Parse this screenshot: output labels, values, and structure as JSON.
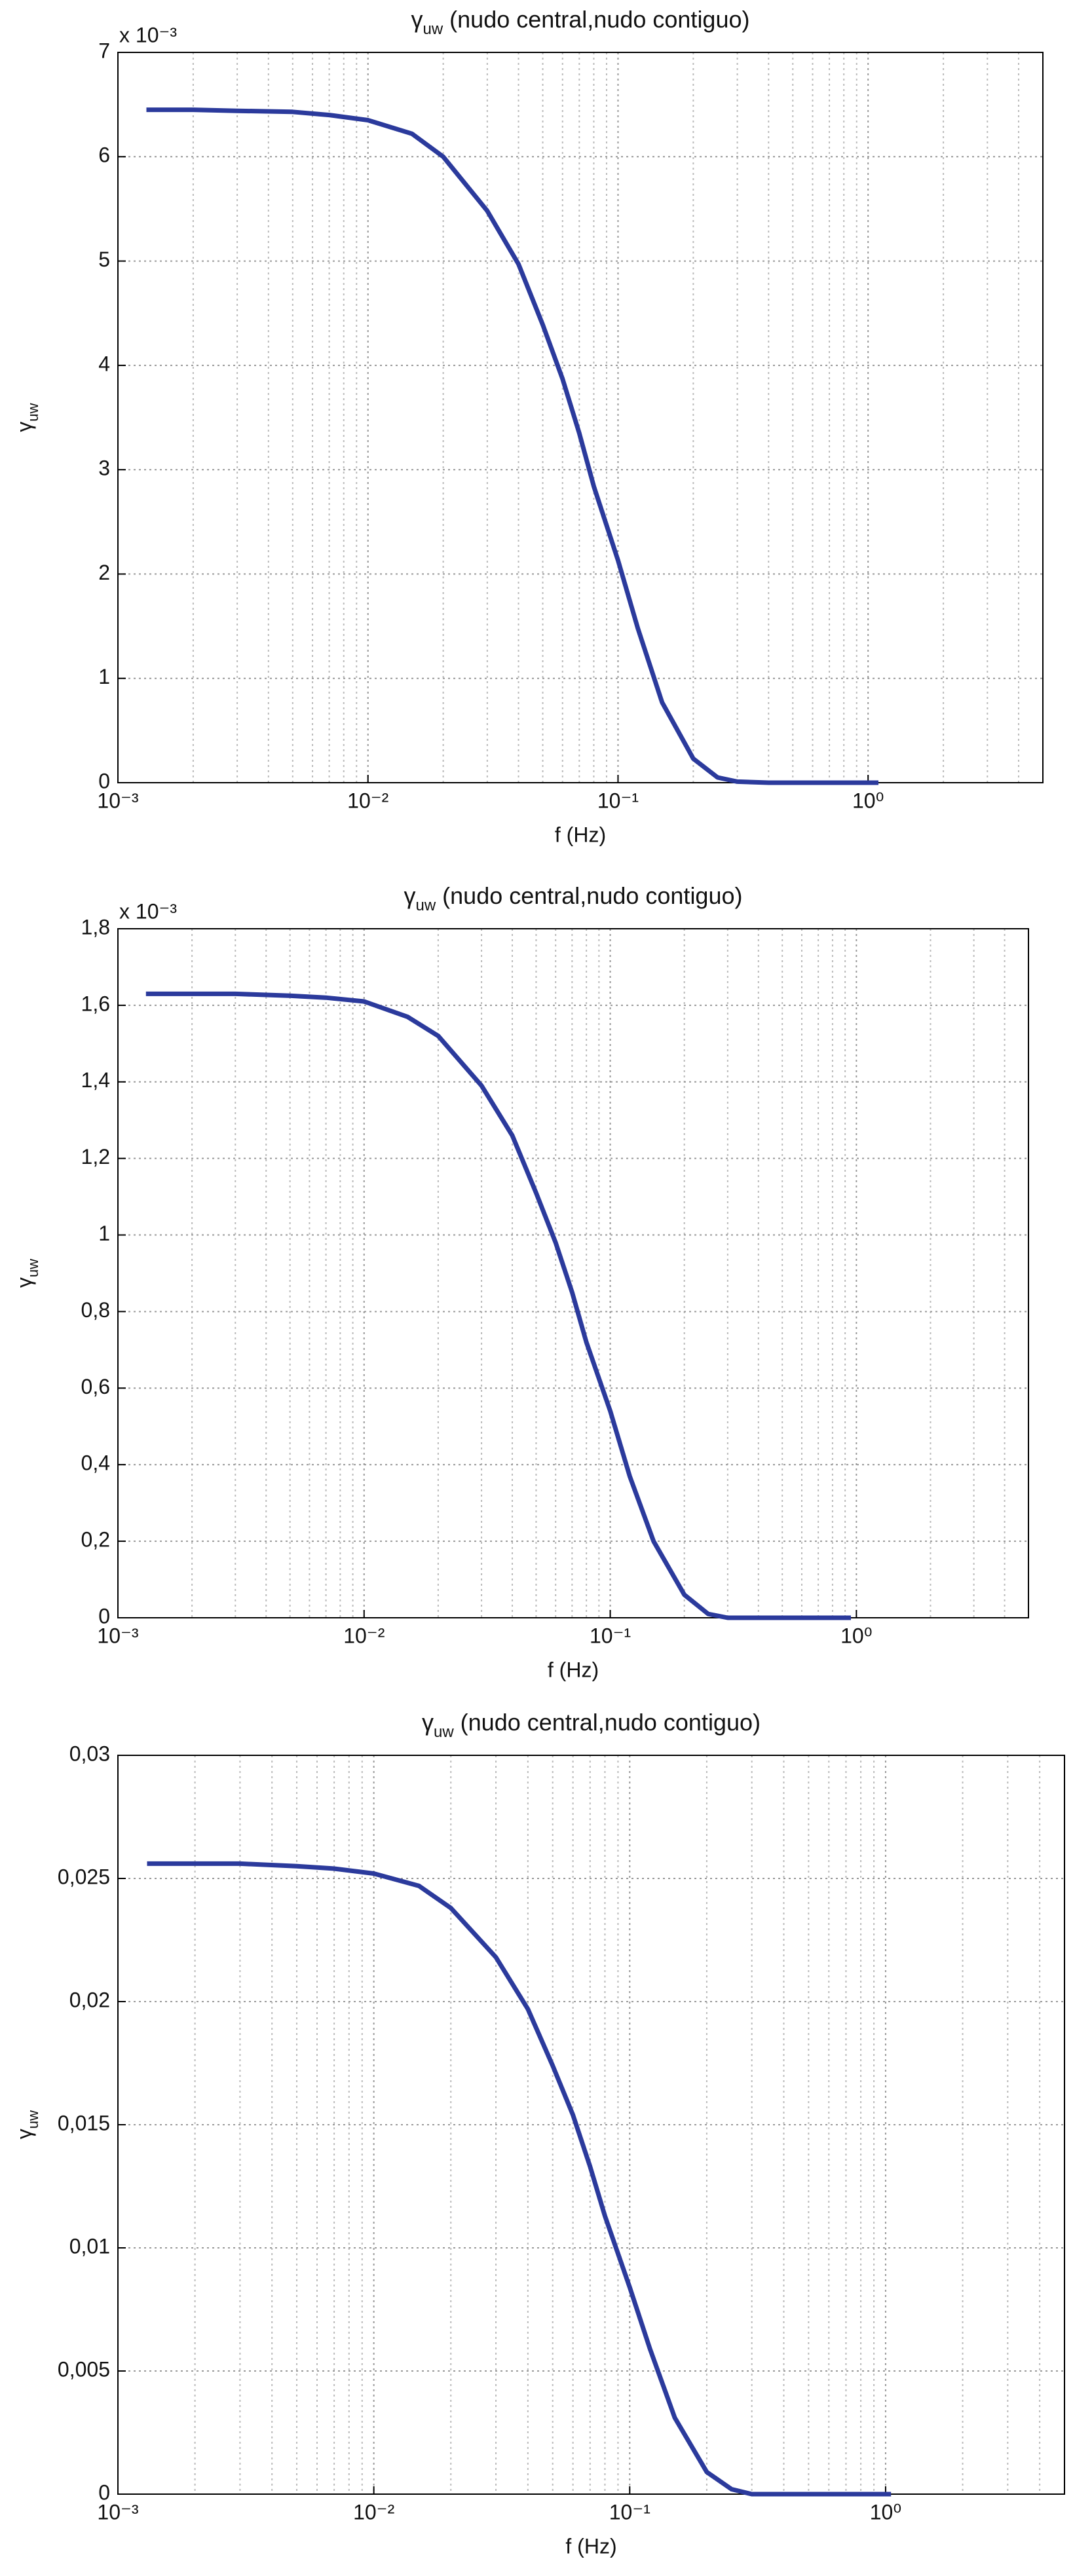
{
  "chart_data": [
    {
      "type": "line",
      "title": "γ",
      "title_sub": "uw",
      "title_rest": " (nudo central,nudo contiguo)",
      "xlabel": "f (Hz)",
      "ylabel": "γ",
      "ylabel_sub": "uw",
      "y_multiplier": "x 10⁻³",
      "log_x": true,
      "grid": true,
      "minor_grid": true,
      "color": "#2b3a9c",
      "x": [
        0.0013,
        0.002,
        0.003,
        0.005,
        0.007,
        0.01,
        0.015,
        0.02,
        0.03,
        0.04,
        0.05,
        0.06,
        0.07,
        0.08,
        0.1,
        0.12,
        0.15,
        0.2,
        0.25,
        0.3,
        0.4,
        0.5,
        0.7,
        1.0,
        1.1
      ],
      "values": [
        6.45,
        6.45,
        6.44,
        6.43,
        6.4,
        6.35,
        6.22,
        6.0,
        5.48,
        4.97,
        4.39,
        3.87,
        3.35,
        2.84,
        2.13,
        1.48,
        0.77,
        0.23,
        0.05,
        0.01,
        0,
        0,
        0,
        0,
        0
      ],
      "xlim": [
        0.001,
        5
      ],
      "xticks": [
        {
          "value": 0.001,
          "label": "10⁻³"
        },
        {
          "value": 0.01,
          "label": "10⁻²"
        },
        {
          "value": 0.1,
          "label": "10⁻¹"
        },
        {
          "value": 1,
          "label": "10⁰"
        }
      ],
      "ylim": [
        0,
        7
      ],
      "yticks": [
        0,
        1,
        2,
        3,
        4,
        5,
        6,
        7
      ]
    },
    {
      "type": "line",
      "title": "γ",
      "title_sub": "uw",
      "title_rest": " (nudo central,nudo contiguo)",
      "xlabel": "f (Hz)",
      "ylabel": "γ",
      "ylabel_sub": "uw",
      "y_multiplier": "x 10⁻³",
      "log_x": true,
      "grid": true,
      "minor_grid": true,
      "color": "#2b3a9c",
      "x": [
        0.0013,
        0.002,
        0.003,
        0.005,
        0.007,
        0.01,
        0.015,
        0.02,
        0.03,
        0.04,
        0.05,
        0.06,
        0.07,
        0.08,
        0.1,
        0.12,
        0.15,
        0.2,
        0.25,
        0.3,
        0.4,
        0.5,
        0.7,
        0.95
      ],
      "values": [
        1.63,
        1.63,
        1.63,
        1.625,
        1.62,
        1.61,
        1.57,
        1.52,
        1.39,
        1.26,
        1.11,
        0.98,
        0.85,
        0.72,
        0.54,
        0.37,
        0.2,
        0.06,
        0.01,
        0,
        0,
        0,
        0,
        0
      ],
      "xlim": [
        0.001,
        5
      ],
      "xticks": [
        {
          "value": 0.001,
          "label": "10⁻³"
        },
        {
          "value": 0.01,
          "label": "10⁻²"
        },
        {
          "value": 0.1,
          "label": "10⁻¹"
        },
        {
          "value": 1,
          "label": "10⁰"
        }
      ],
      "ylim": [
        0,
        1.8
      ],
      "yticks": [
        0,
        {
          "value": 0.2,
          "label": "0,2"
        },
        {
          "value": 0.4,
          "label": "0,4"
        },
        {
          "value": 0.6,
          "label": "0,6"
        },
        {
          "value": 0.8,
          "label": "0,8"
        },
        1,
        {
          "value": 1.2,
          "label": "1,2"
        },
        {
          "value": 1.4,
          "label": "1,4"
        },
        {
          "value": 1.6,
          "label": "1,6"
        },
        {
          "value": 1.8,
          "label": "1,8"
        }
      ]
    },
    {
      "type": "line",
      "title": "γ",
      "title_sub": "uw",
      "title_rest": " (nudo central,nudo contiguo)",
      "xlabel": "f (Hz)",
      "ylabel": "γ",
      "ylabel_sub": "uw",
      "log_x": true,
      "grid": true,
      "minor_grid": true,
      "color": "#2b3a9c",
      "x": [
        0.0013,
        0.002,
        0.003,
        0.005,
        0.007,
        0.01,
        0.015,
        0.02,
        0.03,
        0.04,
        0.05,
        0.06,
        0.07,
        0.08,
        0.1,
        0.12,
        0.15,
        0.2,
        0.25,
        0.3,
        0.4,
        0.5,
        0.7,
        1.0,
        1.05
      ],
      "values": [
        0.0256,
        0.0256,
        0.0256,
        0.0255,
        0.0254,
        0.0252,
        0.0247,
        0.0238,
        0.0218,
        0.0197,
        0.0174,
        0.0154,
        0.0133,
        0.0113,
        0.0084,
        0.0059,
        0.0031,
        0.0009,
        0.0002,
        0,
        0,
        0,
        0,
        0,
        0
      ],
      "xlim": [
        0.001,
        5
      ],
      "xticks": [
        {
          "value": 0.001,
          "label": "10⁻³"
        },
        {
          "value": 0.01,
          "label": "10⁻²"
        },
        {
          "value": 0.1,
          "label": "10⁻¹"
        },
        {
          "value": 1,
          "label": "10⁰"
        }
      ],
      "ylim": [
        0,
        0.03
      ],
      "yticks": [
        0,
        {
          "value": 0.005,
          "label": "0,005"
        },
        {
          "value": 0.01,
          "label": "0,01"
        },
        {
          "value": 0.015,
          "label": "0,015"
        },
        {
          "value": 0.02,
          "label": "0,02"
        },
        {
          "value": 0.025,
          "label": "0,025"
        },
        {
          "value": 0.03,
          "label": "0,03"
        }
      ]
    }
  ]
}
